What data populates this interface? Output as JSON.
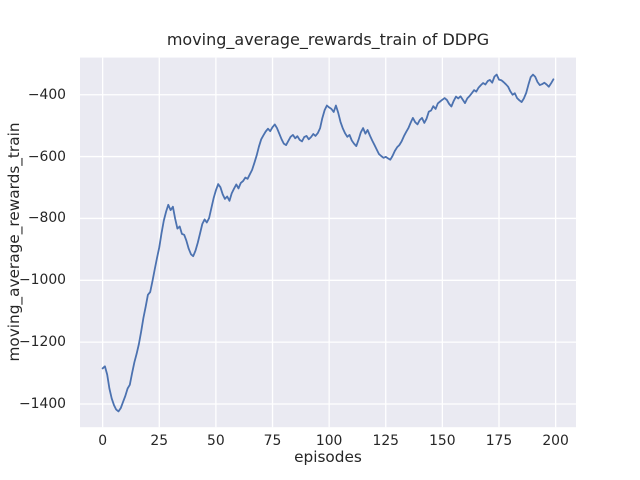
{
  "chart_data": {
    "type": "line",
    "title": "moving_average_rewards_train of DDPG",
    "xlabel": "episodes",
    "ylabel": "moving_average_rewards_train",
    "xlim": [
      -10,
      209
    ],
    "ylim": [
      -1475,
      -280
    ],
    "xticks": [
      0,
      25,
      50,
      75,
      100,
      125,
      150,
      175,
      200
    ],
    "yticks": [
      -400,
      -600,
      -800,
      -1000,
      -1200,
      -1400
    ],
    "grid": true,
    "legend_position": "none",
    "style": {
      "plot_background": "#eaeaf2",
      "grid_color": "#ffffff",
      "grid_width": 1.3,
      "line_color": "#4c72b0",
      "line_width": 1.8,
      "text_color": "#262626",
      "figure_background": "#ffffff"
    },
    "series": [
      {
        "name": "moving_average_rewards_train",
        "x_start": 0,
        "x_step": 1,
        "values": [
          -1285,
          -1278,
          -1305,
          -1350,
          -1382,
          -1404,
          -1418,
          -1424,
          -1413,
          -1394,
          -1374,
          -1350,
          -1338,
          -1300,
          -1265,
          -1238,
          -1206,
          -1165,
          -1122,
          -1085,
          -1047,
          -1038,
          -1002,
          -965,
          -928,
          -893,
          -848,
          -807,
          -778,
          -756,
          -773,
          -762,
          -800,
          -833,
          -826,
          -850,
          -853,
          -872,
          -898,
          -916,
          -922,
          -904,
          -878,
          -849,
          -818,
          -803,
          -813,
          -799,
          -766,
          -735,
          -709,
          -689,
          -699,
          -722,
          -737,
          -729,
          -743,
          -719,
          -704,
          -690,
          -703,
          -685,
          -679,
          -668,
          -672,
          -657,
          -643,
          -620,
          -596,
          -568,
          -544,
          -531,
          -519,
          -510,
          -518,
          -505,
          -496,
          -508,
          -526,
          -544,
          -558,
          -563,
          -549,
          -536,
          -530,
          -541,
          -534,
          -546,
          -551,
          -537,
          -533,
          -544,
          -537,
          -527,
          -533,
          -524,
          -508,
          -476,
          -450,
          -435,
          -441,
          -446,
          -456,
          -435,
          -458,
          -488,
          -508,
          -524,
          -536,
          -530,
          -548,
          -558,
          -566,
          -545,
          -522,
          -508,
          -526,
          -514,
          -532,
          -548,
          -562,
          -577,
          -592,
          -598,
          -604,
          -601,
          -606,
          -610,
          -598,
          -582,
          -570,
          -563,
          -551,
          -534,
          -521,
          -508,
          -490,
          -475,
          -489,
          -496,
          -482,
          -475,
          -491,
          -478,
          -455,
          -451,
          -437,
          -446,
          -428,
          -422,
          -416,
          -411,
          -417,
          -430,
          -438,
          -420,
          -406,
          -412,
          -405,
          -416,
          -427,
          -412,
          -404,
          -395,
          -385,
          -390,
          -377,
          -369,
          -362,
          -367,
          -356,
          -352,
          -361,
          -341,
          -335,
          -351,
          -353,
          -359,
          -366,
          -374,
          -389,
          -400,
          -395,
          -411,
          -418,
          -424,
          -412,
          -394,
          -368,
          -343,
          -335,
          -342,
          -359,
          -369,
          -366,
          -361,
          -367,
          -374,
          -363,
          -350
        ]
      }
    ]
  }
}
